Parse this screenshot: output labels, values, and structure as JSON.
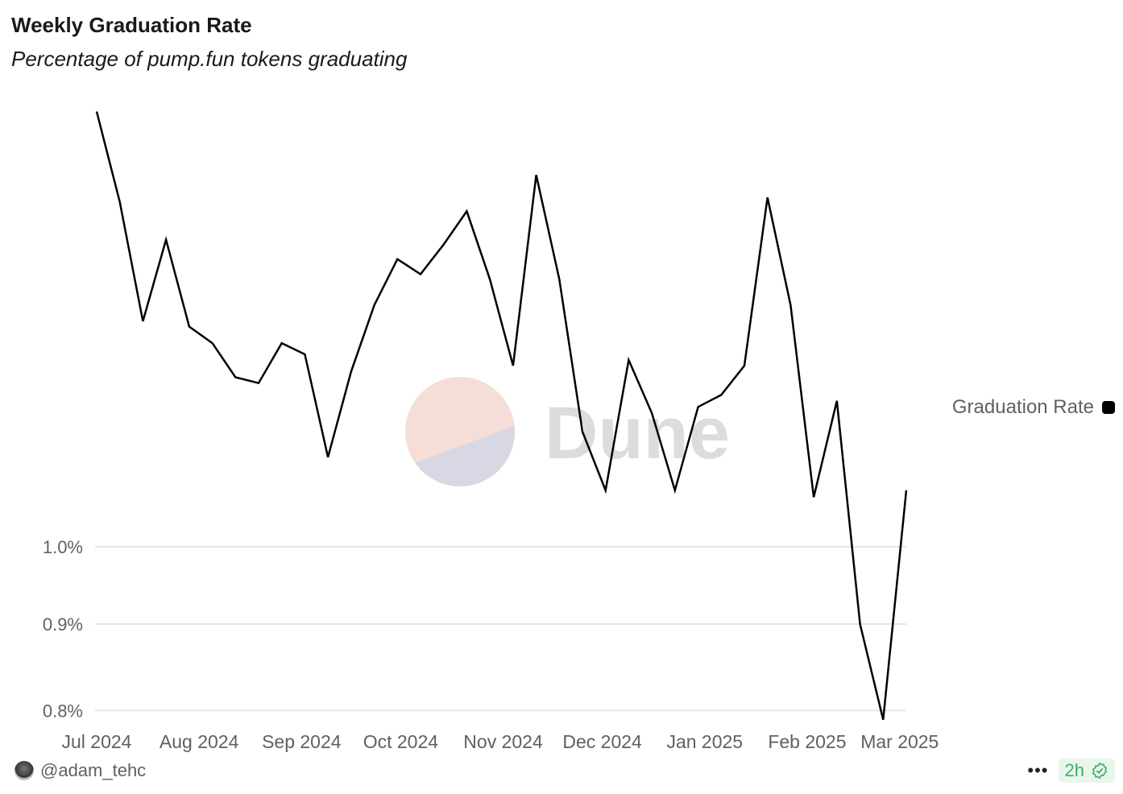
{
  "header": {
    "title": "Weekly Graduation Rate",
    "subtitle": "Percentage of pump.fun tokens graduating"
  },
  "footer": {
    "author": "@adam_tehc",
    "more_icon": "ellipsis-icon",
    "freshness": "2h",
    "verified_icon": "check-badge-icon",
    "freshness_color": "#3fae62"
  },
  "watermark": {
    "text": "Dune"
  },
  "chart_data": {
    "type": "line",
    "title": "Weekly Graduation Rate",
    "subtitle": "Percentage of pump.fun tokens graduating",
    "xlabel": "",
    "ylabel": "",
    "y_scale": "log",
    "grid": true,
    "legend_position": "right",
    "y_ticks": [
      {
        "value": 1.0,
        "label": "1.0%"
      },
      {
        "value": 0.9,
        "label": "0.9%"
      },
      {
        "value": 0.8,
        "label": "0.8%"
      }
    ],
    "x_ticks": [
      {
        "date": "2024-07-01",
        "label": "Jul 2024"
      },
      {
        "date": "2024-08-01",
        "label": "Aug 2024"
      },
      {
        "date": "2024-09-01",
        "label": "Sep 2024"
      },
      {
        "date": "2024-10-01",
        "label": "Oct 2024"
      },
      {
        "date": "2024-11-01",
        "label": "Nov 2024"
      },
      {
        "date": "2024-12-01",
        "label": "Dec 2024"
      },
      {
        "date": "2025-01-01",
        "label": "Jan 2025"
      },
      {
        "date": "2025-02-01",
        "label": "Feb 2025"
      },
      {
        "date": "2025-03-01",
        "label": "Mar 2025"
      }
    ],
    "series": [
      {
        "name": "Graduation Rate",
        "color": "#000000",
        "x": [
          "2024-07-01",
          "2024-07-08",
          "2024-07-15",
          "2024-07-22",
          "2024-07-29",
          "2024-08-05",
          "2024-08-12",
          "2024-08-19",
          "2024-08-26",
          "2024-09-02",
          "2024-09-09",
          "2024-09-16",
          "2024-09-23",
          "2024-09-30",
          "2024-10-07",
          "2024-10-14",
          "2024-10-21",
          "2024-10-28",
          "2024-11-04",
          "2024-11-11",
          "2024-11-18",
          "2024-11-25",
          "2024-12-02",
          "2024-12-09",
          "2024-12-16",
          "2024-12-23",
          "2024-12-30",
          "2025-01-06",
          "2025-01-13",
          "2025-01-20",
          "2025-01-27",
          "2025-02-03",
          "2025-02-10",
          "2025-02-17",
          "2025-02-24",
          "2025-03-03"
        ],
        "values": [
          1.81,
          1.6,
          1.36,
          1.52,
          1.35,
          1.32,
          1.26,
          1.25,
          1.32,
          1.3,
          1.13,
          1.27,
          1.39,
          1.48,
          1.45,
          1.51,
          1.58,
          1.44,
          1.28,
          1.66,
          1.44,
          1.17,
          1.08,
          1.29,
          1.2,
          1.08,
          1.21,
          1.23,
          1.28,
          1.61,
          1.39,
          1.07,
          1.22,
          0.9,
          0.79,
          1.08
        ]
      }
    ]
  }
}
